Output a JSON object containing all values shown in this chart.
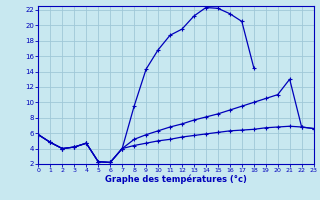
{
  "title": "Graphe des températures (°c)",
  "background_color": "#c8e8f0",
  "line_color": "#0000bb",
  "grid_color": "#a0c8d8",
  "xlim": [
    0,
    23
  ],
  "ylim": [
    2,
    22.5
  ],
  "xticks": [
    0,
    1,
    2,
    3,
    4,
    5,
    6,
    7,
    8,
    9,
    10,
    11,
    12,
    13,
    14,
    15,
    16,
    17,
    18,
    19,
    20,
    21,
    22,
    23
  ],
  "yticks": [
    2,
    4,
    6,
    8,
    10,
    12,
    14,
    16,
    18,
    20,
    22
  ],
  "curve1_x": [
    0,
    1,
    2,
    3,
    4,
    5,
    6,
    7,
    8,
    9,
    10,
    11,
    12,
    13,
    14,
    15,
    16,
    17,
    18
  ],
  "curve1_y": [
    5.8,
    4.8,
    4.0,
    4.2,
    4.7,
    2.3,
    2.2,
    4.0,
    9.5,
    14.3,
    16.8,
    18.7,
    19.5,
    21.2,
    22.3,
    22.2,
    21.5,
    20.5,
    14.5
  ],
  "curve2_x": [
    0,
    1,
    2,
    3,
    4,
    5,
    6,
    7,
    8,
    9,
    10,
    11,
    12,
    13,
    14,
    15,
    16,
    17,
    18,
    19,
    20,
    21,
    22,
    23
  ],
  "curve2_y": [
    5.8,
    4.8,
    4.0,
    4.2,
    4.7,
    2.3,
    2.2,
    4.0,
    5.2,
    5.8,
    6.3,
    6.8,
    7.2,
    7.7,
    8.1,
    8.5,
    9.0,
    9.5,
    10.0,
    10.5,
    11.0,
    13.0,
    6.8,
    6.6
  ],
  "curve3_x": [
    0,
    1,
    2,
    3,
    4,
    5,
    6,
    7,
    8,
    9,
    10,
    11,
    12,
    13,
    14,
    15,
    16,
    17,
    18,
    19,
    20,
    21,
    22,
    23
  ],
  "curve3_y": [
    5.8,
    4.8,
    4.0,
    4.2,
    4.7,
    2.3,
    2.2,
    4.0,
    4.4,
    4.7,
    5.0,
    5.2,
    5.5,
    5.7,
    5.9,
    6.1,
    6.3,
    6.4,
    6.5,
    6.7,
    6.8,
    6.9,
    6.8,
    6.6
  ]
}
